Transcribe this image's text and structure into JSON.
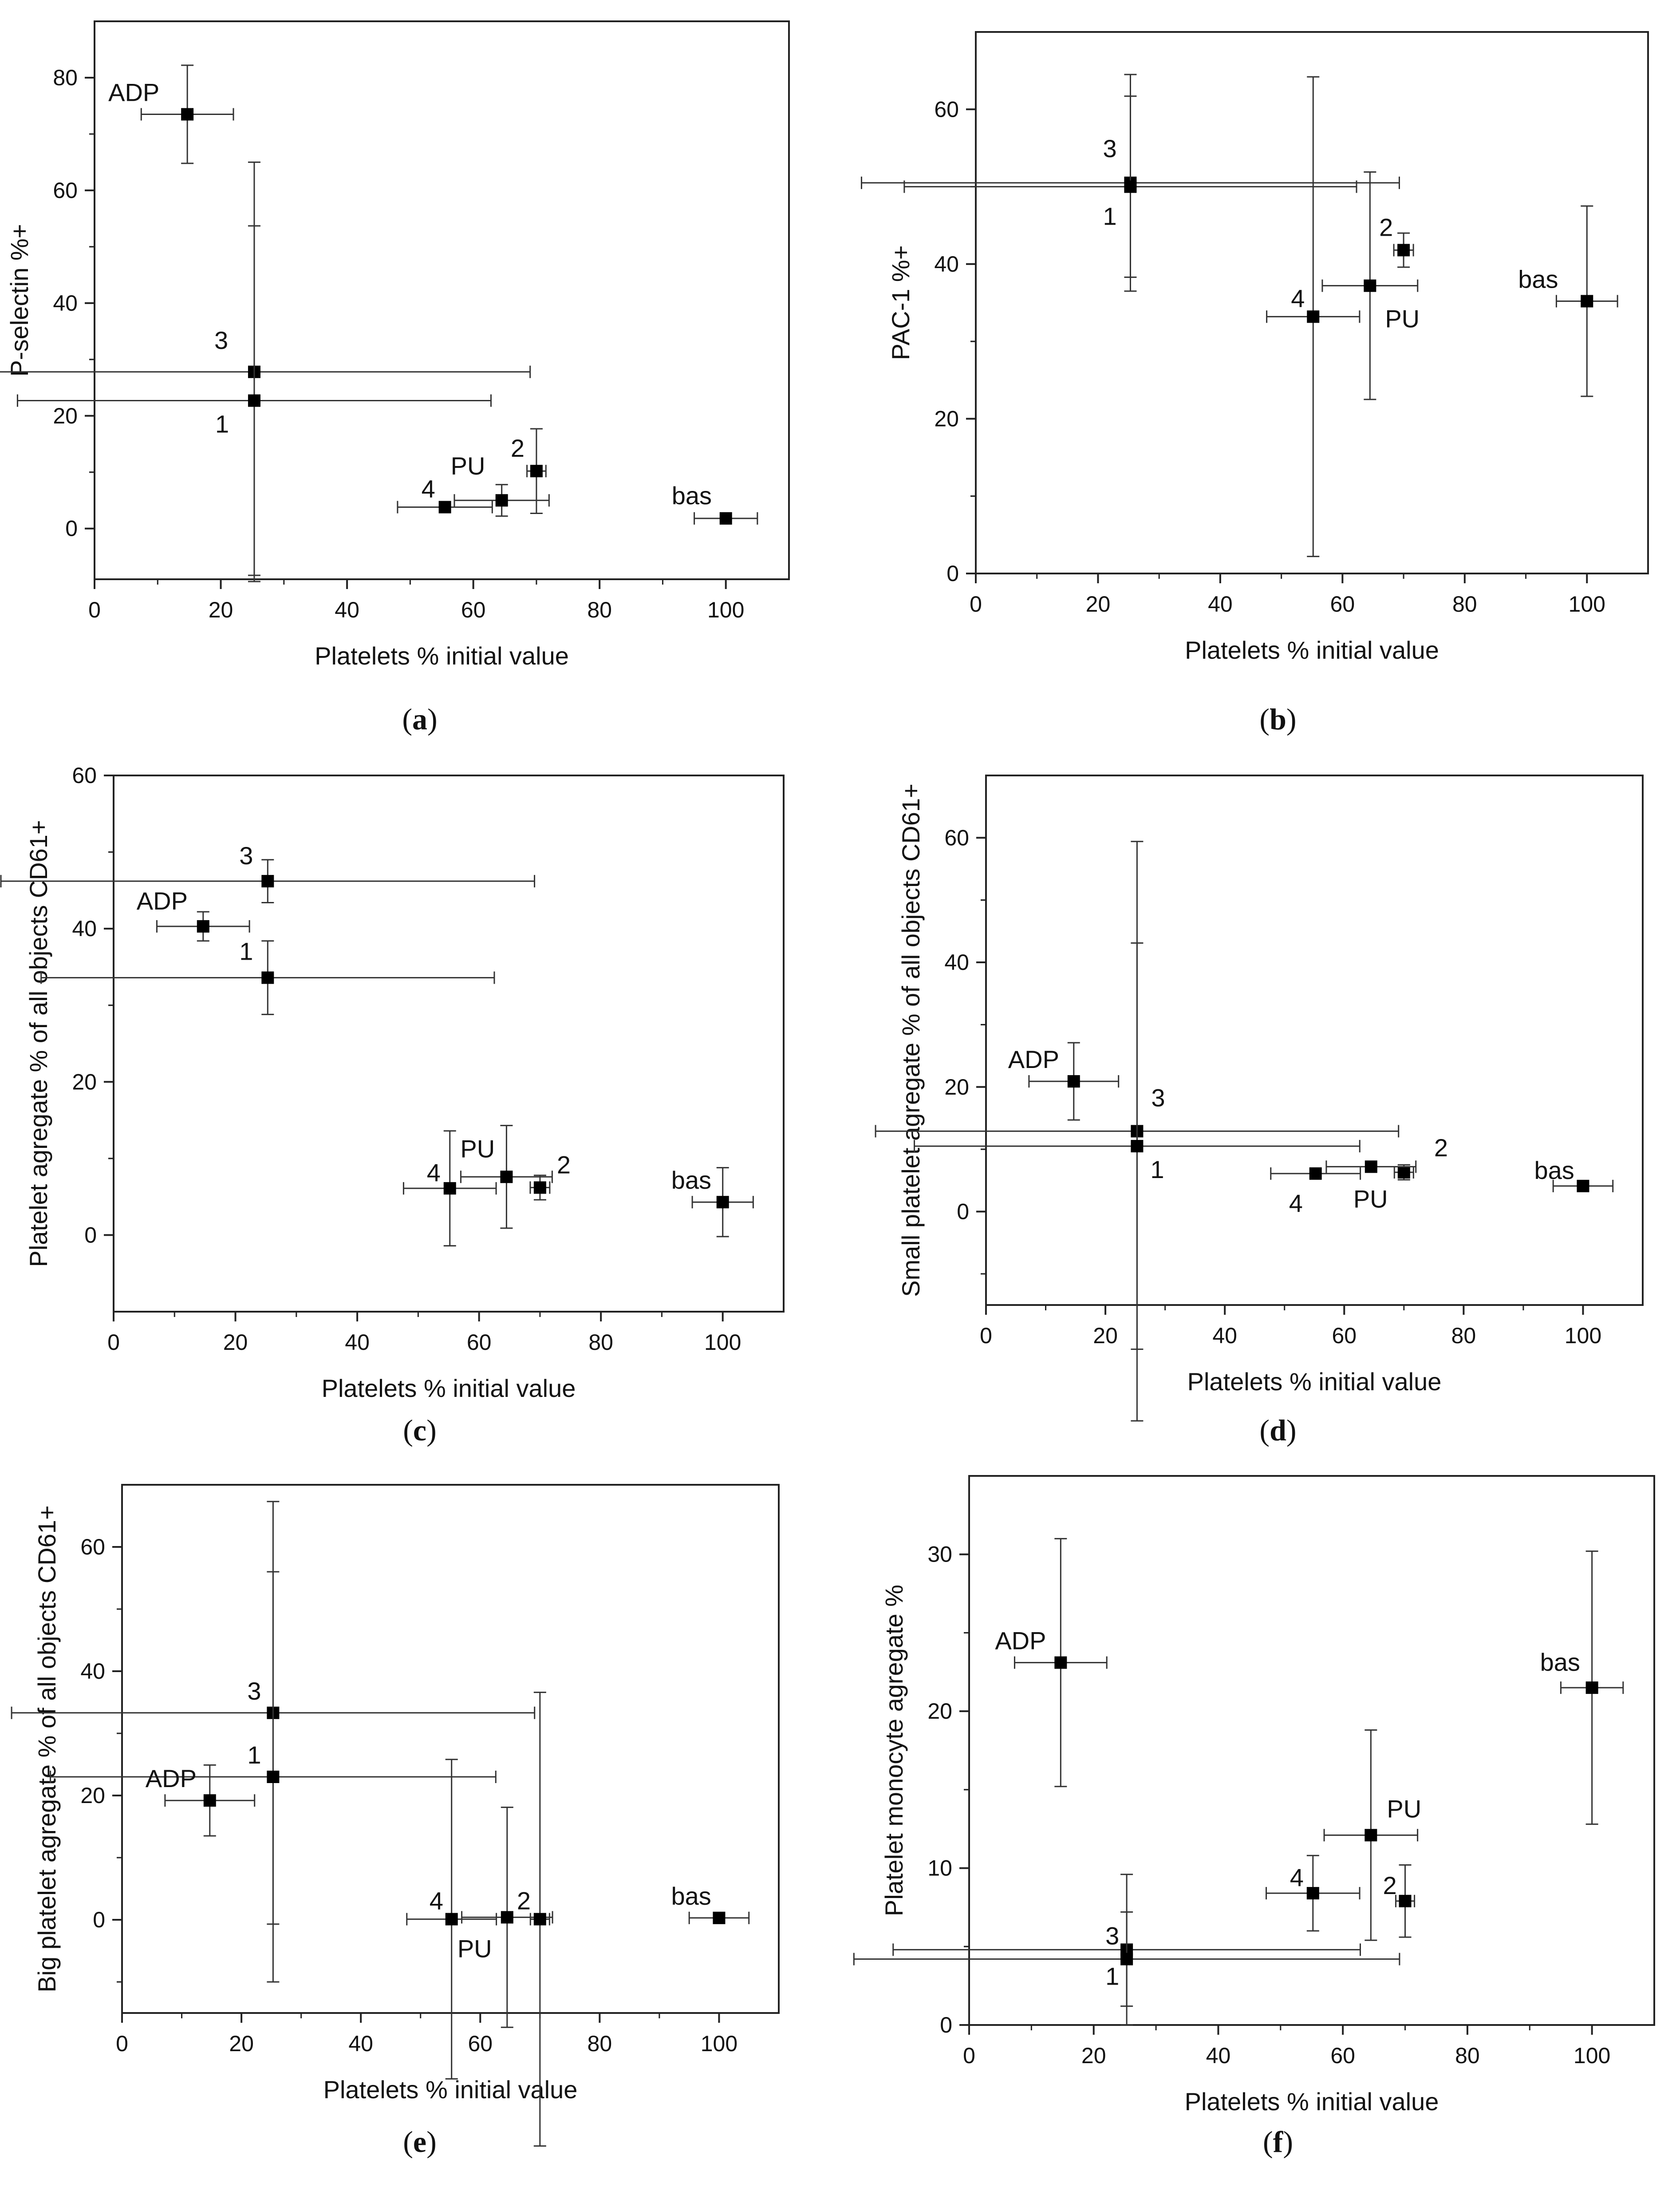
{
  "figure": {
    "panels": [
      "a",
      "b",
      "c",
      "d",
      "e",
      "f"
    ]
  },
  "chart_data": [
    {
      "panel": "a",
      "caption": "(a)",
      "caption_letter": "a",
      "type": "scatter",
      "title": "",
      "xlabel": "Platelets % initial value",
      "ylabel": "P-selectin %+",
      "xlim": [
        0,
        110
      ],
      "ylim": [
        -9,
        90
      ],
      "xticks": [
        0,
        20,
        40,
        60,
        80,
        100
      ],
      "yticks": [
        0,
        20,
        40,
        60,
        80
      ],
      "grid": false,
      "legend": "none",
      "points": [
        {
          "label": "ADP",
          "x": 14.7,
          "y": 73.5,
          "xerr": 7.3,
          "yerr": 8.7
        },
        {
          "label": "3",
          "x": 25.3,
          "y": 27.8,
          "xerr": 43.7,
          "yerr": 37.2
        },
        {
          "label": "1",
          "x": 25.3,
          "y": 22.7,
          "xerr": 37.5,
          "yerr": 31.0
        },
        {
          "label": "2",
          "x": 70.0,
          "y": 10.2,
          "xerr": 1.5,
          "yerr": 7.5
        },
        {
          "label": "PU",
          "x": 64.5,
          "y": 5.0,
          "xerr": 7.5,
          "yerr": 2.8
        },
        {
          "label": "4",
          "x": 55.5,
          "y": 3.8,
          "xerr": 7.5,
          "yerr": 0
        },
        {
          "label": "bas",
          "x": 100.0,
          "y": 1.8,
          "xerr": 5.0,
          "yerr": 0
        }
      ]
    },
    {
      "panel": "b",
      "caption": "(b)",
      "caption_letter": "b",
      "type": "scatter",
      "title": "",
      "xlabel": "Platelets % initial value",
      "ylabel": "PAC-1 %+",
      "xlim": [
        0,
        110
      ],
      "ylim": [
        0,
        70
      ],
      "xticks": [
        0,
        20,
        40,
        60,
        80,
        100
      ],
      "yticks": [
        0,
        20,
        40,
        60
      ],
      "grid": false,
      "legend": "none",
      "points": [
        {
          "label": "3",
          "x": 25.3,
          "y": 50.5,
          "xerr": 44.0,
          "yerr": 14.0
        },
        {
          "label": "1",
          "x": 25.3,
          "y": 50.0,
          "xerr": 37.0,
          "yerr": 11.7
        },
        {
          "label": "2",
          "x": 70.0,
          "y": 41.8,
          "xerr": 1.6,
          "yerr": 2.2
        },
        {
          "label": "PU",
          "x": 64.5,
          "y": 37.2,
          "xerr": 7.8,
          "yerr": 14.7
        },
        {
          "label": "4",
          "x": 55.2,
          "y": 33.2,
          "xerr": 7.6,
          "yerr": 31.0
        },
        {
          "label": "bas",
          "x": 100.0,
          "y": 35.2,
          "xerr": 5.0,
          "yerr": 12.3
        }
      ]
    },
    {
      "panel": "c",
      "caption": "(c)",
      "caption_letter": "c",
      "type": "scatter",
      "title": "",
      "xlabel": "Platelets % initial value",
      "ylabel": "Platelet agregate % of all objects CD61+",
      "xlim": [
        0,
        110
      ],
      "ylim": [
        -10,
        60
      ],
      "xticks": [
        0,
        20,
        40,
        60,
        80,
        100
      ],
      "yticks": [
        0,
        20,
        40,
        60
      ],
      "grid": false,
      "legend": "none",
      "points": [
        {
          "label": "3",
          "x": 25.3,
          "y": 46.2,
          "xerr": 43.8,
          "yerr": 2.8
        },
        {
          "label": "ADP",
          "x": 14.7,
          "y": 40.3,
          "xerr": 7.6,
          "yerr": 1.9
        },
        {
          "label": "1",
          "x": 25.3,
          "y": 33.6,
          "xerr": 37.2,
          "yerr": 4.8
        },
        {
          "label": "PU",
          "x": 64.5,
          "y": 7.6,
          "xerr": 7.5,
          "yerr": 6.7
        },
        {
          "label": "2",
          "x": 70.0,
          "y": 6.2,
          "xerr": 1.6,
          "yerr": 1.6
        },
        {
          "label": "4",
          "x": 55.2,
          "y": 6.1,
          "xerr": 7.6,
          "yerr": 7.5
        },
        {
          "label": "bas",
          "x": 100.0,
          "y": 4.3,
          "xerr": 5.0,
          "yerr": 4.5
        }
      ]
    },
    {
      "panel": "d",
      "caption": "(d)",
      "caption_letter": "d",
      "type": "scatter",
      "title": "",
      "xlabel": "Platelets % initial value",
      "ylabel": "Small platelet agregate % of all objects CD61+",
      "xlim": [
        0,
        110
      ],
      "ylim": [
        -15,
        70
      ],
      "xticks": [
        0,
        20,
        40,
        60,
        80,
        100
      ],
      "yticks": [
        0,
        20,
        40,
        60
      ],
      "grid": false,
      "legend": "none",
      "points": [
        {
          "label": "ADP",
          "x": 14.7,
          "y": 20.9,
          "xerr": 7.5,
          "yerr": 6.2
        },
        {
          "label": "3",
          "x": 25.3,
          "y": 12.9,
          "xerr": 43.8,
          "yerr": 46.5
        },
        {
          "label": "1",
          "x": 25.3,
          "y": 10.5,
          "xerr": 37.3,
          "yerr": 32.6
        },
        {
          "label": "2",
          "x": 70.0,
          "y": 6.3,
          "xerr": 1.6,
          "yerr": 1.2
        },
        {
          "label": "PU",
          "x": 64.5,
          "y": 7.2,
          "xerr": 7.5,
          "yerr": 0
        },
        {
          "label": "4",
          "x": 55.2,
          "y": 6.1,
          "xerr": 7.5,
          "yerr": 0
        },
        {
          "label": "bas",
          "x": 100.0,
          "y": 4.1,
          "xerr": 5.0,
          "yerr": 0
        }
      ]
    },
    {
      "panel": "e",
      "caption": "(e)",
      "caption_letter": "e",
      "type": "scatter",
      "title": "",
      "xlabel": "Platelets % initial value",
      "ylabel": "Big platelet agregate % of all objects CD61+",
      "xlim": [
        0,
        110
      ],
      "ylim": [
        -15,
        70
      ],
      "xticks": [
        0,
        20,
        40,
        60,
        80,
        100
      ],
      "yticks": [
        0,
        20,
        40,
        60
      ],
      "grid": false,
      "legend": "none",
      "points": [
        {
          "label": "3",
          "x": 25.3,
          "y": 33.3,
          "xerr": 43.8,
          "yerr": 34.0
        },
        {
          "label": "1",
          "x": 25.3,
          "y": 23.0,
          "xerr": 37.3,
          "yerr": 33.0
        },
        {
          "label": "ADP",
          "x": 14.7,
          "y": 19.2,
          "xerr": 7.5,
          "yerr": 5.7
        },
        {
          "label": "4",
          "x": 55.2,
          "y": 0.1,
          "xerr": 7.5,
          "yerr": 25.7
        },
        {
          "label": "PU",
          "x": 64.5,
          "y": 0.4,
          "xerr": 7.6,
          "yerr": 17.7
        },
        {
          "label": "2",
          "x": 70.0,
          "y": 0.1,
          "xerr": 1.6,
          "yerr": 36.5
        },
        {
          "label": "bas",
          "x": 100.0,
          "y": 0.3,
          "xerr": 5.0,
          "yerr": 0
        }
      ]
    },
    {
      "panel": "f",
      "caption": "(f)",
      "caption_letter": "f",
      "type": "scatter",
      "title": "",
      "xlabel": "Platelets % initial value",
      "ylabel": "Platelet monocyte agregate %",
      "xlim": [
        0,
        110
      ],
      "ylim": [
        0,
        35
      ],
      "xticks": [
        0,
        20,
        40,
        60,
        80,
        100
      ],
      "yticks": [
        0,
        10,
        20,
        30
      ],
      "grid": false,
      "legend": "none",
      "points": [
        {
          "label": "ADP",
          "x": 14.7,
          "y": 23.1,
          "xerr": 7.4,
          "yerr": 7.9
        },
        {
          "label": "bas",
          "x": 100.0,
          "y": 21.5,
          "xerr": 5.0,
          "yerr": 8.7
        },
        {
          "label": "PU",
          "x": 64.5,
          "y": 12.1,
          "xerr": 7.5,
          "yerr": 6.7
        },
        {
          "label": "4",
          "x": 55.2,
          "y": 8.4,
          "xerr": 7.5,
          "yerr": 2.4
        },
        {
          "label": "2",
          "x": 70.0,
          "y": 7.9,
          "xerr": 1.5,
          "yerr": 2.3
        },
        {
          "label": "3",
          "x": 25.3,
          "y": 4.8,
          "xerr": 37.5,
          "yerr": 4.8
        },
        {
          "label": "1",
          "x": 25.3,
          "y": 4.2,
          "xerr": 43.8,
          "yerr": 3.0
        }
      ]
    }
  ]
}
